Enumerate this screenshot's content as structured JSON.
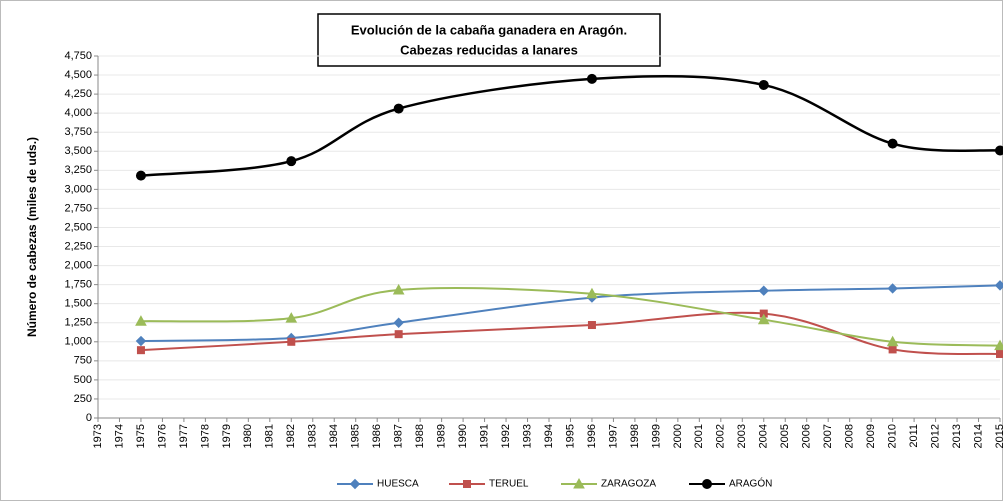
{
  "chart_data": {
    "type": "line",
    "title": "Evolución de la cabaña ganadera en Aragón.",
    "subtitle": "Cabezas reducidas a lanares",
    "y_label": "Número de cabezas (miles de uds.)",
    "x": [
      1975,
      1982,
      1987,
      1996,
      2004,
      2010,
      2015
    ],
    "xlim": [
      1973,
      2015
    ],
    "xticks": [
      1973,
      1974,
      1975,
      1976,
      1977,
      1978,
      1979,
      1980,
      1981,
      1982,
      1983,
      1984,
      1985,
      1986,
      1987,
      1988,
      1989,
      1990,
      1991,
      1992,
      1993,
      1994,
      1995,
      1996,
      1997,
      1998,
      1999,
      2000,
      2001,
      2002,
      2003,
      2004,
      2005,
      2006,
      2007,
      2008,
      2009,
      2010,
      2011,
      2012,
      2013,
      2014,
      2015
    ],
    "ylim": [
      0,
      4750
    ],
    "yticks": [
      0,
      250,
      500,
      750,
      {
        "value": 1000,
        "label": "1,000"
      },
      {
        "value": 1250,
        "label": "1,250"
      },
      {
        "value": 1500,
        "label": "1,500"
      },
      {
        "value": 1750,
        "label": "1,750"
      },
      {
        "value": 2000,
        "label": "2,000"
      },
      {
        "value": 2250,
        "label": "2,250"
      },
      {
        "value": 2500,
        "label": "2,500"
      },
      {
        "value": 2750,
        "label": "2,750"
      },
      {
        "value": 3000,
        "label": "3,000"
      },
      {
        "value": 3250,
        "label": "3,250"
      },
      {
        "value": 3500,
        "label": "3,500"
      },
      {
        "value": 3750,
        "label": "3,750"
      },
      {
        "value": 4000,
        "label": "4,000"
      },
      {
        "value": 4250,
        "label": "4,250"
      },
      {
        "value": 4500,
        "label": "4,500"
      },
      {
        "value": 4750,
        "label": "4,750"
      }
    ],
    "grid": true,
    "smooth": true,
    "legend": "bottom",
    "series": [
      {
        "name": "HUESCA",
        "color": "#4f81bd",
        "marker": "diamond",
        "values": [
          1010,
          1050,
          1250,
          1580,
          1670,
          1700,
          1740
        ]
      },
      {
        "name": "TERUEL",
        "color": "#c0504d",
        "marker": "square",
        "values": [
          890,
          1000,
          1100,
          1220,
          1370,
          900,
          840
        ]
      },
      {
        "name": "ZARAGOZA",
        "color": "#9bbb59",
        "marker": "triangle",
        "values": [
          1270,
          1310,
          1680,
          1630,
          1290,
          1000,
          950
        ]
      },
      {
        "name": "ARAGÓN",
        "color": "#000000",
        "marker": "circle",
        "values": [
          3180,
          3370,
          4060,
          4450,
          4370,
          3600,
          3510
        ]
      }
    ]
  }
}
